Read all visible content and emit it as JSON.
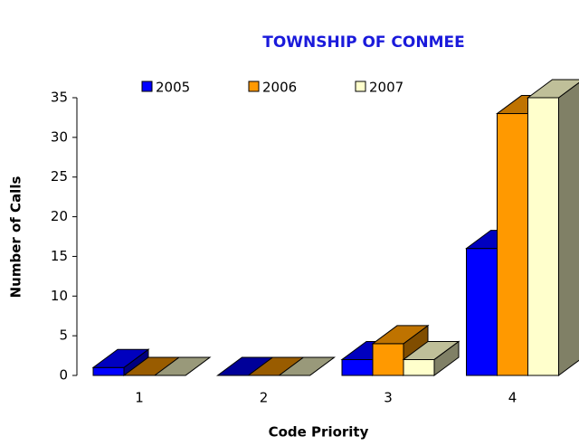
{
  "chart_data": {
    "type": "bar3d",
    "title": "TOWNSHIP OF CONMEE",
    "x_label": "Code Priority",
    "y_label": "Number of Calls",
    "categories": [
      "1",
      "2",
      "3",
      "4"
    ],
    "series": [
      {
        "name": "2005",
        "color": "#0000ff",
        "values": [
          1,
          0,
          2,
          16
        ]
      },
      {
        "name": "2006",
        "color": "#ff9900",
        "values": [
          0,
          0,
          4,
          33
        ]
      },
      {
        "name": "2007",
        "color": "#ffffcc",
        "values": [
          0,
          0,
          2,
          35
        ]
      }
    ],
    "ylim": [
      0,
      35
    ],
    "yticks": [
      0,
      5,
      10,
      15,
      20,
      25,
      30,
      35
    ],
    "legend": "top"
  }
}
